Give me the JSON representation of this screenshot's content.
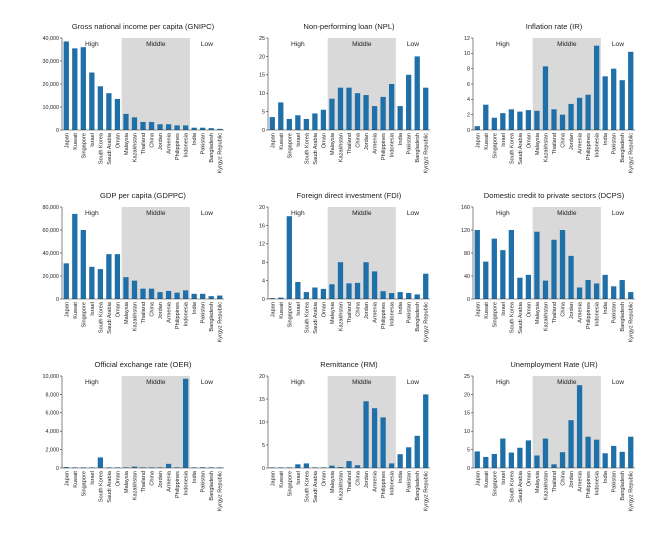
{
  "chart_data": [
    {
      "type": "bar",
      "title": "Gross national income per capita (GNIPC)",
      "categories": [
        "Japan",
        "Kuwait",
        "Singapore",
        "Israel",
        "South Korea",
        "Saudi Arabia",
        "Oman",
        "Malaysia",
        "Kazakhstan",
        "Thailand",
        "China",
        "Jordan",
        "Armenia",
        "Philippines",
        "Indonesia",
        "India",
        "Pakistan",
        "Bangladesh",
        "Kyrgyz Republic"
      ],
      "values": [
        38500,
        35500,
        36000,
        25000,
        19000,
        16000,
        13500,
        7000,
        5500,
        3500,
        3500,
        2500,
        2500,
        2000,
        2000,
        1000,
        1000,
        800,
        500
      ],
      "ylim": [
        0,
        40000
      ],
      "yticks": [
        "0",
        "10,000",
        "20,000",
        "30,000",
        "40,000"
      ],
      "groups": [
        "High",
        "Middle",
        "Low"
      ],
      "group_ranges": [
        [
          0,
          6
        ],
        [
          7,
          14
        ],
        [
          15,
          18
        ]
      ],
      "bar_color": "#1f6fa8",
      "shade_color": "#d9d9d9"
    },
    {
      "type": "bar",
      "title": "Non-performing loan (NPL)",
      "categories": [
        "Japan",
        "Kuwait",
        "Singapore",
        "Israel",
        "South Korea",
        "Saudi Arabia",
        "Oman",
        "Malaysia",
        "Kazakhstan",
        "Thailand",
        "China",
        "Jordan",
        "Armenia",
        "Philippines",
        "Indonesia",
        "India",
        "Pakistan",
        "Bangladesh",
        "Kyrgyz Republic"
      ],
      "values": [
        3.5,
        7.5,
        3,
        4,
        3,
        4.5,
        5.5,
        8.5,
        11.5,
        11.5,
        10,
        9.5,
        6.5,
        9,
        12.5,
        6.5,
        15,
        20,
        11.5
      ],
      "ylim": [
        0,
        25
      ],
      "yticks": [
        "0",
        "5",
        "10",
        "15",
        "20",
        "25"
      ],
      "groups": [
        "High",
        "Middle",
        "Low"
      ],
      "group_ranges": [
        [
          0,
          6
        ],
        [
          7,
          14
        ],
        [
          15,
          18
        ]
      ],
      "bar_color": "#1f6fa8",
      "shade_color": "#d9d9d9"
    },
    {
      "type": "bar",
      "title": "Inflation rate (IR)",
      "categories": [
        "Japan",
        "Kuwait",
        "Singapore",
        "Israel",
        "South Korea",
        "Saudi Arabia",
        "Oman",
        "Malaysia",
        "Kazakhstan",
        "Thailand",
        "China",
        "Jordan",
        "Armenia",
        "Philippines",
        "Indonesia",
        "India",
        "Pakistan",
        "Bangladesh",
        "Kyrgyz Republic"
      ],
      "values": [
        0.5,
        3.3,
        1.6,
        2.2,
        2.7,
        2.4,
        2.6,
        2.5,
        8.3,
        2.7,
        2,
        3.4,
        4.2,
        4.6,
        11,
        7,
        8,
        6.5,
        10.2
      ],
      "ylim": [
        0,
        12
      ],
      "yticks": [
        "0",
        "2",
        "4",
        "6",
        "8",
        "10",
        "12"
      ],
      "groups": [
        "High",
        "Middle",
        "Low"
      ],
      "group_ranges": [
        [
          0,
          6
        ],
        [
          7,
          14
        ],
        [
          15,
          18
        ]
      ],
      "bar_color": "#1f6fa8",
      "shade_color": "#d9d9d9"
    },
    {
      "type": "bar",
      "title": "GDP per capita (GDPPC)",
      "categories": [
        "Japan",
        "Kuwait",
        "Singapore",
        "Israel",
        "South Korea",
        "Saudi Arabia",
        "Oman",
        "Malaysia",
        "Kazakhstan",
        "Thailand",
        "China",
        "Jordan",
        "Armenia",
        "Philippines",
        "Indonesia",
        "India",
        "Pakistan",
        "Bangladesh",
        "Kyrgyz Republic"
      ],
      "values": [
        31000,
        74000,
        60000,
        28000,
        26000,
        39000,
        39000,
        19000,
        16000,
        9000,
        9000,
        6000,
        7000,
        5500,
        7500,
        4500,
        4500,
        2500,
        3000
      ],
      "ylim": [
        0,
        80000
      ],
      "yticks": [
        "0",
        "20,000",
        "40,000",
        "60,000",
        "80,000"
      ],
      "groups": [
        "High",
        "Middle",
        "Low"
      ],
      "group_ranges": [
        [
          0,
          6
        ],
        [
          7,
          14
        ],
        [
          15,
          18
        ]
      ],
      "bar_color": "#1f6fa8",
      "shade_color": "#d9d9d9"
    },
    {
      "type": "bar",
      "title": "Foreign direct investment (FDI)",
      "categories": [
        "Japan",
        "Kuwait",
        "Singapore",
        "Israel",
        "South Korea",
        "Saudi Arabia",
        "Oman",
        "Malaysia",
        "Kazakhstan",
        "Thailand",
        "China",
        "Jordan",
        "Armenia",
        "Philippines",
        "Indonesia",
        "India",
        "Pakistan",
        "Bangladesh",
        "Kyrgyz Republic"
      ],
      "values": [
        0.2,
        0.3,
        18,
        3.7,
        1.5,
        2.5,
        2.2,
        3.2,
        8,
        3.4,
        3.5,
        8,
        6,
        1.7,
        1.3,
        1.5,
        1.3,
        1,
        5.5
      ],
      "ylim": [
        0,
        20
      ],
      "yticks": [
        "0",
        "4",
        "8",
        "12",
        "16",
        "20"
      ],
      "groups": [
        "High",
        "Middle",
        "Low"
      ],
      "group_ranges": [
        [
          0,
          6
        ],
        [
          7,
          14
        ],
        [
          15,
          18
        ]
      ],
      "bar_color": "#1f6fa8",
      "shade_color": "#d9d9d9"
    },
    {
      "type": "bar",
      "title": "Domestic credit to private sectors (DCPS)",
      "categories": [
        "Japan",
        "Kuwait",
        "Singapore",
        "Israel",
        "South Korea",
        "Saudi Arabia",
        "Oman",
        "Malaysia",
        "Kazakhstan",
        "Thailand",
        "China",
        "Jordan",
        "Armenia",
        "Philippines",
        "Indonesia",
        "India",
        "Pakistan",
        "Bangladesh",
        "Kyrgyz Republic"
      ],
      "values": [
        120,
        65,
        105,
        85,
        120,
        37,
        42,
        117,
        32,
        103,
        120,
        75,
        20,
        33,
        27,
        42,
        22,
        33,
        12
      ],
      "ylim": [
        0,
        160
      ],
      "yticks": [
        "0",
        "40",
        "80",
        "120",
        "160"
      ],
      "groups": [
        "High",
        "Middle",
        "Low"
      ],
      "group_ranges": [
        [
          0,
          6
        ],
        [
          7,
          14
        ],
        [
          15,
          18
        ]
      ],
      "bar_color": "#1f6fa8",
      "shade_color": "#d9d9d9"
    },
    {
      "type": "bar",
      "title": "Official exchange rate (OER)",
      "categories": [
        "Japan",
        "Kuwait",
        "Singapore",
        "Israel",
        "South Korea",
        "Saudi Arabia",
        "Oman",
        "Malaysia",
        "Kazakhstan",
        "Thailand",
        "China",
        "Jordan",
        "Armenia",
        "Philippines",
        "Indonesia",
        "India",
        "Pakistan",
        "Bangladesh",
        "Kyrgyz Republic"
      ],
      "values": [
        100,
        1,
        1,
        4,
        1150,
        4,
        1,
        3,
        150,
        33,
        7,
        1,
        450,
        45,
        9700,
        60,
        80,
        70,
        50
      ],
      "ylim": [
        0,
        10000
      ],
      "yticks": [
        "0",
        "2,000",
        "4,000",
        "6,000",
        "8,000",
        "10,000"
      ],
      "groups": [
        "High",
        "Middle",
        "Low"
      ],
      "group_ranges": [
        [
          0,
          6
        ],
        [
          7,
          14
        ],
        [
          15,
          18
        ]
      ],
      "bar_color": "#1f6fa8",
      "shade_color": "#d9d9d9"
    },
    {
      "type": "bar",
      "title": "Remittance (RM)",
      "categories": [
        "Japan",
        "Kuwait",
        "Singapore",
        "Israel",
        "South Korea",
        "Saudi Arabia",
        "Oman",
        "Malaysia",
        "Kazakhstan",
        "Thailand",
        "China",
        "Jordan",
        "Armenia",
        "Philippines",
        "Indonesia",
        "India",
        "Pakistan",
        "Bangladesh",
        "Kyrgyz Republic"
      ],
      "values": [
        0.1,
        0.1,
        0.1,
        0.8,
        1,
        0.1,
        0.1,
        0.5,
        0.2,
        1.5,
        0.6,
        14.5,
        13,
        11,
        1,
        3,
        4.5,
        7,
        16
      ],
      "ylim": [
        0,
        20
      ],
      "yticks": [
        "0",
        "5",
        "10",
        "15",
        "20"
      ],
      "groups": [
        "High",
        "Middle",
        "Low"
      ],
      "group_ranges": [
        [
          0,
          6
        ],
        [
          7,
          14
        ],
        [
          15,
          18
        ]
      ],
      "bar_color": "#1f6fa8",
      "shade_color": "#d9d9d9"
    },
    {
      "type": "bar",
      "title": "Unemployment Rate (UR)",
      "categories": [
        "Japan",
        "Kuwait",
        "Singapore",
        "Israel",
        "South Korea",
        "Saudi Arabia",
        "Oman",
        "Malaysia",
        "Kazakhstan",
        "Thailand",
        "China",
        "Jordan",
        "Armenia",
        "Philippines",
        "Indonesia",
        "India",
        "Pakistan",
        "Bangladesh",
        "Kyrgyz Republic"
      ],
      "values": [
        4.5,
        3,
        3.8,
        8,
        4.2,
        5.5,
        7.5,
        3.4,
        8,
        1,
        4.3,
        13,
        22.5,
        8.5,
        7.7,
        4,
        6,
        4.4,
        8.5
      ],
      "ylim": [
        0,
        25
      ],
      "yticks": [
        "0",
        "5",
        "10",
        "15",
        "20",
        "25"
      ],
      "groups": [
        "High",
        "Middle",
        "Low"
      ],
      "group_ranges": [
        [
          0,
          6
        ],
        [
          7,
          14
        ],
        [
          15,
          18
        ]
      ],
      "bar_color": "#1f6fa8",
      "shade_color": "#d9d9d9"
    }
  ]
}
